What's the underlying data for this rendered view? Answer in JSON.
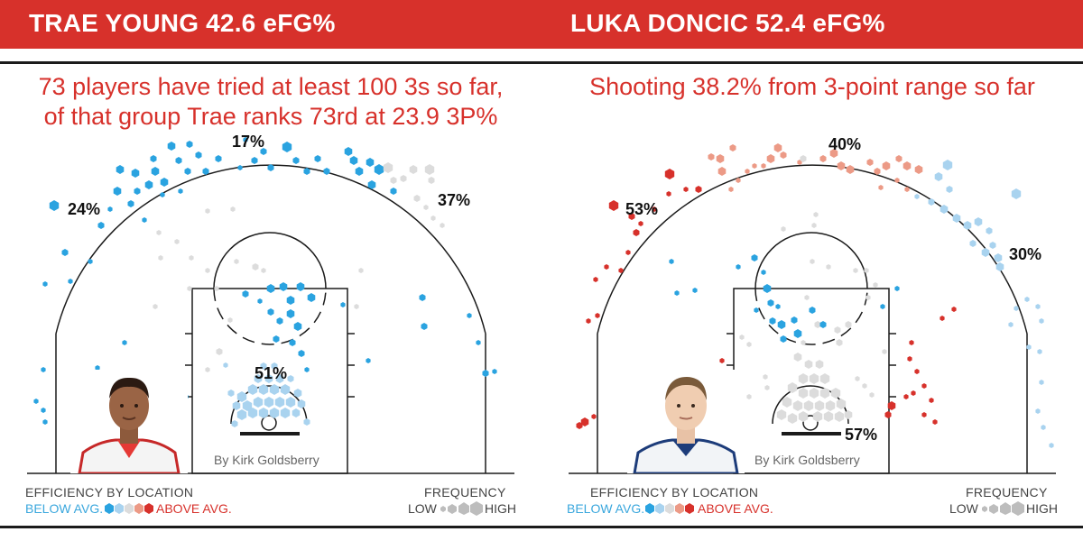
{
  "panels": [
    {
      "title": "TRAE YOUNG 42.6 eFG%",
      "subtitle_lines": [
        "73 players have tried at least 100 3s so far,",
        "of that group Trae ranks 73rd at 23.9 3P%"
      ],
      "credit": "By Kirk Goldsberry",
      "photo": "player-photo"
    },
    {
      "title": "LUKA DONCIC 52.4 eFG%",
      "subtitle_lines": [
        "Shooting 38.2% from 3-point range so far"
      ],
      "credit": "By Kirk Goldsberry",
      "photo": "player-photo"
    }
  ],
  "legend": {
    "efficiency_label": "EFFICIENCY BY LOCATION",
    "below": "BELOW AVG.",
    "above": "ABOVE AVG.",
    "frequency_label": "FREQUENCY",
    "low": "LOW",
    "high": "HIGH"
  },
  "colors": {
    "header_red": "#d7312b",
    "below_blue_dark": "#2aa3e0",
    "below_blue_light": "#a9d3ef",
    "average_gray": "#dcdcdc",
    "above_red_light": "#ec9a86",
    "above_red_dark": "#d7312b"
  },
  "chart_data": [
    {
      "type": "hexbin shot chart",
      "player": "TRAE YOUNG",
      "efg_pct": 42.6,
      "zone_labels": [
        {
          "zone": "left corner/wing three",
          "text": "24%"
        },
        {
          "zone": "top of key three",
          "text": "17%"
        },
        {
          "zone": "right wing three",
          "text": "37%"
        },
        {
          "zone": "restricted area",
          "text": "51%"
        }
      ]
    },
    {
      "type": "hexbin shot chart",
      "player": "LUKA DONCIC",
      "efg_pct": 52.4,
      "zone_labels": [
        {
          "zone": "left wing three",
          "text": "53%"
        },
        {
          "zone": "top of key three",
          "text": "40%"
        },
        {
          "zone": "right wing three",
          "text": "30%"
        },
        {
          "zone": "restricted area",
          "text": "57%"
        }
      ]
    }
  ]
}
